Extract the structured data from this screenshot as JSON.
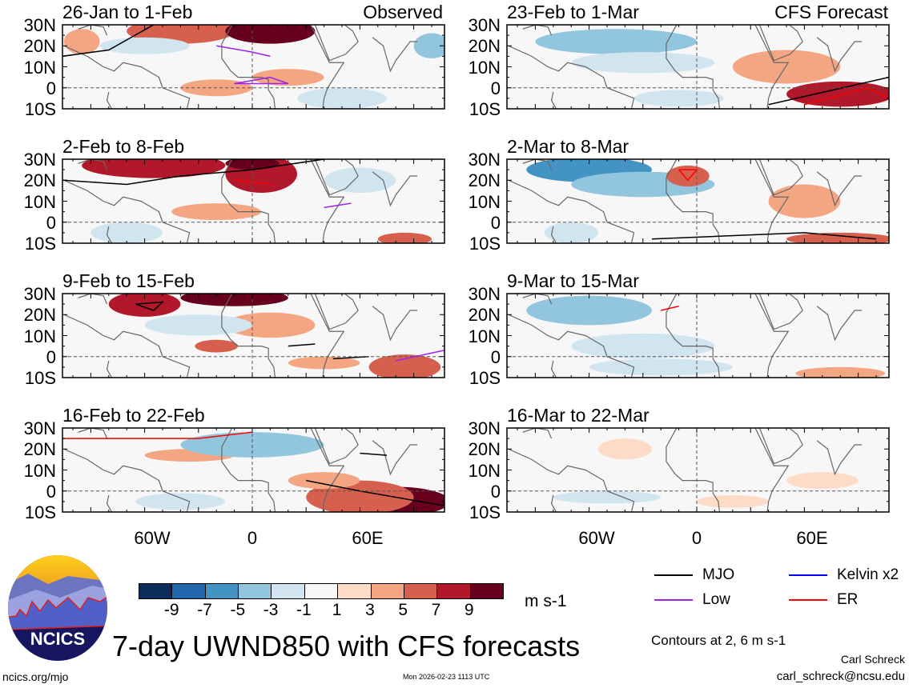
{
  "left_label": "Observed",
  "right_label": "CFS Forecast",
  "panels_left": [
    "26-Jan to 1-Feb",
    "2-Feb to 8-Feb",
    "9-Feb to 15-Feb",
    "16-Feb to 22-Feb"
  ],
  "panels_right": [
    "23-Feb to 1-Mar",
    "2-Mar to 8-Mar",
    "9-Mar to 15-Mar",
    "16-Mar to 22-Mar"
  ],
  "lat_labels": [
    "30N",
    "20N",
    "10N",
    "0",
    "10S"
  ],
  "lon_labels": [
    "60W",
    "0",
    "60E"
  ],
  "colorbar": {
    "ticks": [
      "-9",
      "-7",
      "-5",
      "-3",
      "-1",
      "1",
      "3",
      "5",
      "7",
      "9"
    ],
    "units": "m s-1",
    "colors": [
      "#0c2c5c",
      "#2166ac",
      "#4393c3",
      "#92c5de",
      "#d1e5f0",
      "#f7f7f7",
      "#fddbc7",
      "#f4a582",
      "#d6604d",
      "#b2182b",
      "#67001f"
    ]
  },
  "legend": [
    {
      "label": "MJO",
      "color": "#000000"
    },
    {
      "label": "Kelvin x2",
      "color": "#0000ff"
    },
    {
      "label": "Low",
      "color": "#a020f0"
    },
    {
      "label": "ER",
      "color": "#ff0000"
    }
  ],
  "contours_note": "Contours at 2, 6 m s-1",
  "title": "7-day UWND850 with CFS forecasts",
  "logo_text": "NCICS",
  "url": "ncics.org/mjo",
  "timestamp": "Mon 2026-02-23 1113 UTC",
  "author": "Carl Schreck",
  "email": "carl_schreck@ncsu.edu",
  "chart_data": {
    "type": "heatmap",
    "variable": "850-hPa zonal wind anomaly",
    "units": "m s-1",
    "lat_range": [
      "10S",
      "30N"
    ],
    "lon_ticks": [
      "60W",
      "0",
      "60E"
    ],
    "levels": [
      -9,
      -7,
      -5,
      -3,
      -1,
      1,
      3,
      5,
      7,
      9
    ]
  }
}
